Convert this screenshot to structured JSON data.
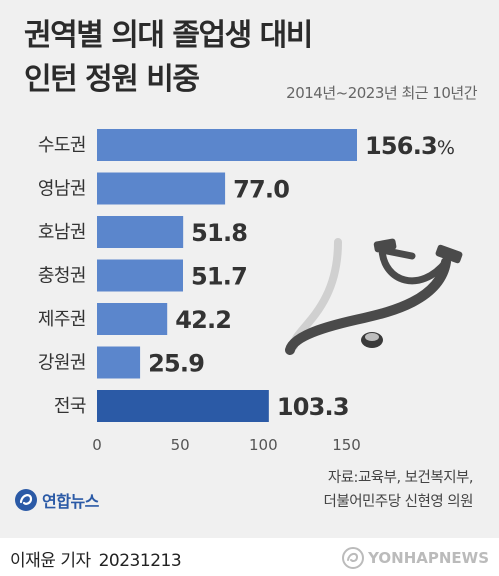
{
  "header": {
    "title_line1": "권역별 의대 졸업생 대비",
    "title_line2": "인턴 정원 비중",
    "subtitle": "2014년~2023년 최근 10년간"
  },
  "colors": {
    "bar": "#5b86cc",
    "bar_highlight": "#2b5aa6"
  },
  "chart_data": {
    "type": "bar",
    "orientation": "horizontal",
    "title": "권역별 의대 졸업생 대비 인턴 정원 비중",
    "subtitle": "2014년~2023년 최근 10년간",
    "categories": [
      "수도권",
      "영남권",
      "호남권",
      "충청권",
      "제주권",
      "강원권",
      "전국"
    ],
    "values": [
      156.3,
      77.0,
      51.8,
      51.7,
      42.2,
      25.9,
      103.3
    ],
    "value_labels": [
      "156.3",
      "77.0",
      "51.8",
      "51.7",
      "42.2",
      "25.9",
      "103.3"
    ],
    "unit": "%",
    "highlight": "전국",
    "xlim": [
      0,
      155
    ],
    "xticks": [
      0,
      50,
      100,
      150
    ],
    "xlabel": "",
    "ylabel": "",
    "grid": false,
    "legend": "none"
  },
  "source": {
    "line1": "자료:교육부, 보건복지부,",
    "line2": "더불어민주당 신현영 의원"
  },
  "logo": {
    "text": "연합뉴스",
    "icon": "yonhap-logo-icon"
  },
  "footer": {
    "credit": "이재윤 기자",
    "date": "20231213",
    "watermark": "YONHAPNEWS",
    "watermark_icon": "yonhap-swirl-icon"
  }
}
